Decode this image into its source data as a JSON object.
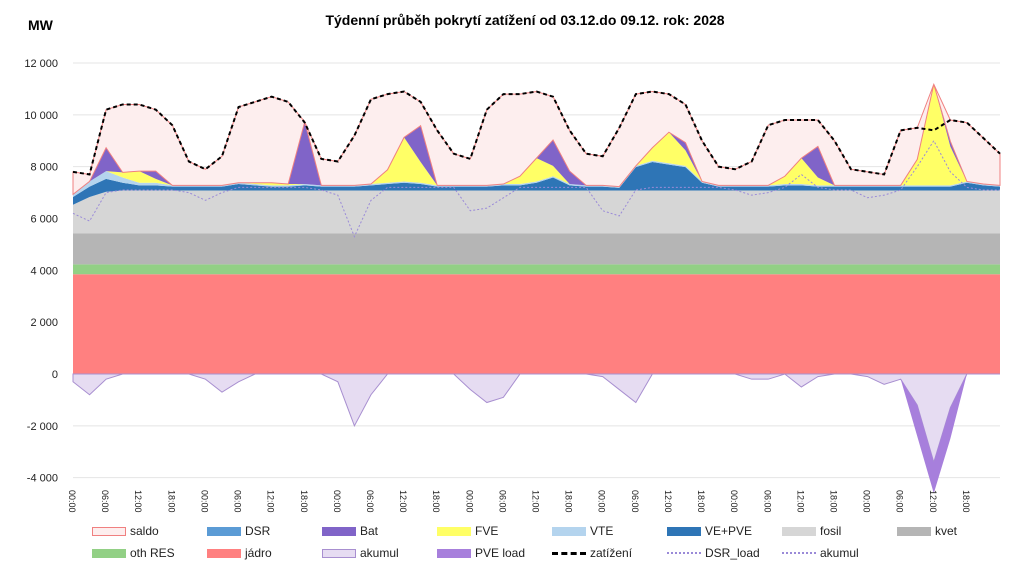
{
  "chart_data": {
    "type": "area",
    "title": "Týdenní průběh pokrytí zatížení od 03.12.do 09.12. rok: 2028",
    "ylabel": "MW",
    "ylim": [
      -4000,
      12000
    ],
    "yticks": [
      -4000,
      -2000,
      0,
      2000,
      4000,
      6000,
      8000,
      10000,
      12000
    ],
    "ytick_labels": [
      "-4 000",
      "-2 000",
      "0",
      "2 000",
      "4 000",
      "6 000",
      "8 000",
      "10 000",
      "12 000"
    ],
    "x_step_hours": 3,
    "xtick_labels": [
      "00:00",
      "06:00",
      "12:00",
      "18:00",
      "00:00",
      "06:00",
      "12:00",
      "18:00",
      "00:00",
      "06:00",
      "12:00",
      "18:00",
      "00:00",
      "06:00",
      "12:00",
      "18:00",
      "00:00",
      "06:00",
      "12:00",
      "18:00",
      "00:00",
      "06:00",
      "12:00",
      "18:00",
      "00:00",
      "06:00",
      "12:00",
      "18:00"
    ],
    "stack_order": [
      "jadro",
      "othres",
      "kvet",
      "fosil",
      "vepve",
      "vte",
      "dsr",
      "fve",
      "bat",
      "saldo"
    ],
    "series": {
      "jadro": {
        "name": "jádro",
        "color": "#ff8080",
        "values": 3850
      },
      "othres": {
        "name": "oth RES",
        "color": "#92d085",
        "values": 380
      },
      "kvet": {
        "name": "kvet",
        "color": "#b5b5b5",
        "values": 1200
      },
      "fosil": {
        "name": "fosil",
        "color": "#d6d6d6",
        "values": [
          1100,
          1400,
          1600,
          1650,
          1650,
          1650,
          1650,
          1650,
          1650,
          1650,
          1650,
          1650,
          1650,
          1650,
          1650,
          1650,
          1650,
          1650,
          1650,
          1650,
          1650,
          1650,
          1650,
          1650,
          1650,
          1650,
          1650,
          1650,
          1650,
          1650,
          1650,
          1650,
          1650,
          1650,
          1650,
          1650,
          1650,
          1650,
          1650,
          1650,
          1650,
          1650,
          1650,
          1650,
          1650,
          1650,
          1650,
          1650,
          1650,
          1650,
          1650,
          1650,
          1650,
          1650,
          1650,
          1650,
          1650
        ]
      },
      "vepve": {
        "name": "VE+PVE",
        "color": "#2e75b6",
        "values": [
          300,
          400,
          500,
          300,
          200,
          200,
          150,
          150,
          150,
          150,
          250,
          200,
          150,
          150,
          200,
          150,
          150,
          150,
          200,
          250,
          300,
          250,
          150,
          150,
          150,
          150,
          200,
          200,
          300,
          500,
          200,
          150,
          150,
          100,
          900,
          1100,
          1000,
          900,
          300,
          150,
          150,
          150,
          150,
          200,
          200,
          150,
          150,
          150,
          150,
          150,
          150,
          150,
          150,
          150,
          300,
          200,
          150
        ]
      },
      "vte": {
        "name": "VTE",
        "color": "#b4d4ee",
        "values": [
          100,
          200,
          300,
          200,
          100,
          100,
          50,
          50,
          50,
          50,
          50,
          50,
          50,
          50,
          50,
          50,
          50,
          50,
          50,
          50,
          50,
          50,
          50,
          50,
          50,
          50,
          50,
          50,
          50,
          50,
          50,
          50,
          50,
          50,
          50,
          50,
          50,
          50,
          50,
          50,
          50,
          50,
          50,
          50,
          50,
          50,
          50,
          50,
          50,
          50,
          50,
          50,
          50,
          50,
          50,
          50,
          50
        ]
      },
      "dsr": {
        "name": "DSR",
        "color": "#5b9bd5",
        "values": 0
      },
      "fve": {
        "name": "FVE",
        "color": "#ffff66",
        "values": [
          0,
          0,
          0,
          200,
          450,
          150,
          0,
          0,
          0,
          0,
          0,
          50,
          100,
          50,
          0,
          0,
          0,
          0,
          0,
          500,
          1700,
          800,
          0,
          0,
          0,
          0,
          0,
          300,
          900,
          400,
          0,
          0,
          0,
          0,
          0,
          500,
          1200,
          600,
          0,
          0,
          0,
          0,
          0,
          300,
          1000,
          300,
          0,
          0,
          0,
          0,
          0,
          1000,
          3900,
          1500,
          0,
          0,
          0
        ]
      },
      "bat": {
        "name": "Bat",
        "color": "#8064c8",
        "values": [
          0,
          0,
          900,
          0,
          0,
          300,
          0,
          0,
          0,
          0,
          0,
          0,
          0,
          0,
          2400,
          0,
          0,
          0,
          0,
          0,
          0,
          1400,
          0,
          0,
          0,
          0,
          0,
          0,
          0,
          1000,
          500,
          0,
          0,
          0,
          0,
          0,
          0,
          300,
          0,
          0,
          0,
          0,
          0,
          0,
          0,
          1200,
          0,
          0,
          0,
          0,
          0,
          0,
          0,
          200,
          0,
          0,
          0
        ]
      },
      "saldo": {
        "name": "saldo",
        "color": "#fdeeee",
        "stroke": "#f08080"
      },
      "akumul": {
        "name": "akumul",
        "color": "#e6dcf2",
        "stroke": "#a88fd0",
        "values": [
          -300,
          -800,
          -200,
          0,
          0,
          0,
          0,
          0,
          -200,
          -700,
          -300,
          0,
          0,
          0,
          0,
          0,
          -300,
          -2000,
          -800,
          0,
          0,
          0,
          0,
          0,
          -600,
          -1100,
          -900,
          0,
          0,
          0,
          0,
          0,
          -100,
          -600,
          -1100,
          0,
          0,
          0,
          0,
          0,
          0,
          -200,
          -200,
          0,
          -500,
          -100,
          0,
          0,
          -100,
          -400,
          -200,
          -1200,
          -3400,
          -1300,
          0,
          0,
          0
        ]
      },
      "pveload": {
        "name": "PVE load",
        "color": "#a77fdc",
        "values": [
          0,
          0,
          0,
          0,
          0,
          0,
          0,
          0,
          0,
          0,
          0,
          0,
          0,
          0,
          0,
          0,
          0,
          0,
          0,
          0,
          0,
          0,
          0,
          0,
          0,
          0,
          0,
          0,
          0,
          0,
          0,
          0,
          0,
          0,
          0,
          0,
          0,
          0,
          0,
          0,
          0,
          0,
          0,
          0,
          0,
          0,
          0,
          0,
          0,
          0,
          0,
          -1200,
          -1200,
          -1200,
          0,
          0,
          0
        ]
      },
      "zatizeni": {
        "name": "zatížení",
        "color": "#000000",
        "values": [
          7800,
          7700,
          10200,
          10400,
          10400,
          10200,
          9600,
          8200,
          7900,
          8400,
          10300,
          10500,
          10700,
          10500,
          9700,
          8300,
          8200,
          9200,
          10600,
          10800,
          10900,
          10500,
          9400,
          8500,
          8300,
          10200,
          10800,
          10800,
          10900,
          10700,
          9400,
          8500,
          8400,
          9500,
          10800,
          10900,
          10800,
          10400,
          9000,
          8000,
          7900,
          8200,
          9600,
          9800,
          9800,
          9800,
          9000,
          7900,
          7800,
          7700,
          9400,
          9500,
          9400,
          9800,
          9700,
          9100,
          8500
        ]
      },
      "dsr_load": {
        "name": "DSR_load",
        "color": "#9a8ad8"
      },
      "akumul_line": {
        "name": "akumul",
        "color": "#9a8ad8",
        "values": [
          6200,
          5900,
          7000,
          7100,
          7100,
          7100,
          7100,
          7000,
          6700,
          7000,
          7200,
          7200,
          7200,
          7200,
          7200,
          7100,
          6900,
          5300,
          6700,
          7200,
          7200,
          7200,
          7200,
          7200,
          6300,
          6400,
          6800,
          7200,
          7200,
          7200,
          7200,
          7200,
          6300,
          6100,
          7100,
          7200,
          7200,
          7200,
          7200,
          7200,
          7100,
          6900,
          7000,
          7200,
          7700,
          7200,
          7100,
          7100,
          6800,
          6900,
          7100,
          8000,
          9000,
          7800,
          7200,
          7100,
          7100
        ]
      }
    },
    "legend": [
      {
        "key": "saldo",
        "label": "saldo"
      },
      {
        "key": "dsr",
        "label": "DSR"
      },
      {
        "key": "bat",
        "label": "Bat"
      },
      {
        "key": "fve",
        "label": "FVE"
      },
      {
        "key": "vte",
        "label": "VTE"
      },
      {
        "key": "vepve",
        "label": "VE+PVE"
      },
      {
        "key": "fosil",
        "label": "fosil"
      },
      {
        "key": "kvet",
        "label": "kvet"
      },
      {
        "key": "othres",
        "label": "oth RES"
      },
      {
        "key": "jadro",
        "label": "jádro"
      },
      {
        "key": "akumul",
        "label": "akumul"
      },
      {
        "key": "pveload",
        "label": "PVE load"
      },
      {
        "key": "zatizeni",
        "label": "zatížení"
      },
      {
        "key": "dsr_load",
        "label": "DSR_load"
      },
      {
        "key": "akumul_line",
        "label": "akumul"
      }
    ]
  }
}
